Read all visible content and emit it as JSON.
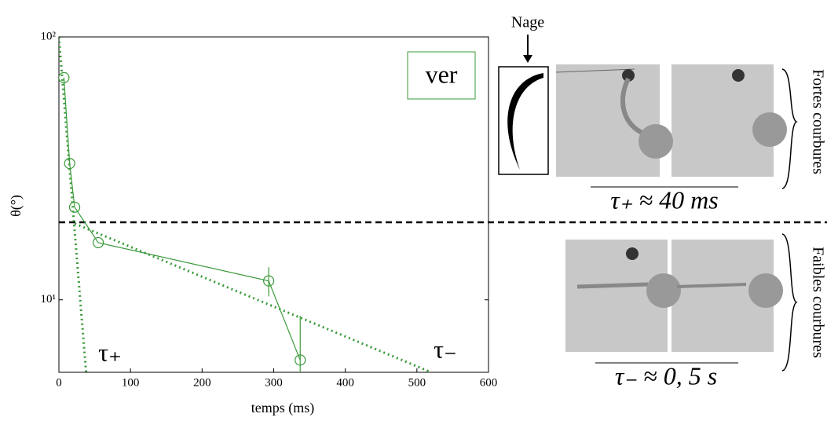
{
  "chart_data": {
    "type": "line",
    "xlabel": "temps (ms)",
    "ylabel": "θ(°)",
    "xlim": [
      0,
      600
    ],
    "xticks": [
      0,
      100,
      200,
      300,
      400,
      500,
      600
    ],
    "ylim": [
      5.3,
      100
    ],
    "ylog": true,
    "yticks": [
      {
        "value": 10,
        "label": "10¹"
      },
      {
        "value": 100,
        "label": "10²"
      }
    ],
    "series": [
      {
        "name": "ver",
        "color": "#3a9a3a",
        "x": [
          7,
          15,
          22,
          55,
          293,
          337
        ],
        "values": [
          70,
          33,
          22.5,
          16.5,
          11.8,
          5.9
        ],
        "errors": [
          0,
          0,
          0,
          0,
          1.5,
          2.8
        ]
      }
    ],
    "fit_lines": [
      {
        "label": "τ₊",
        "x": [
          0,
          38
        ],
        "values": [
          100,
          5.3
        ]
      },
      {
        "label": "τ₋",
        "x": [
          22,
          520
        ],
        "values": [
          19.5,
          5.3
        ]
      }
    ]
  },
  "figure": {
    "swim_label": "Nage",
    "strong_label": "Fortes courbures",
    "weak_label": "Faibles courbures",
    "tau_plus_eq": "τ₊ ≈ 40 ms",
    "tau_minus_eq": "τ₋ ≈ 0, 5 s"
  }
}
